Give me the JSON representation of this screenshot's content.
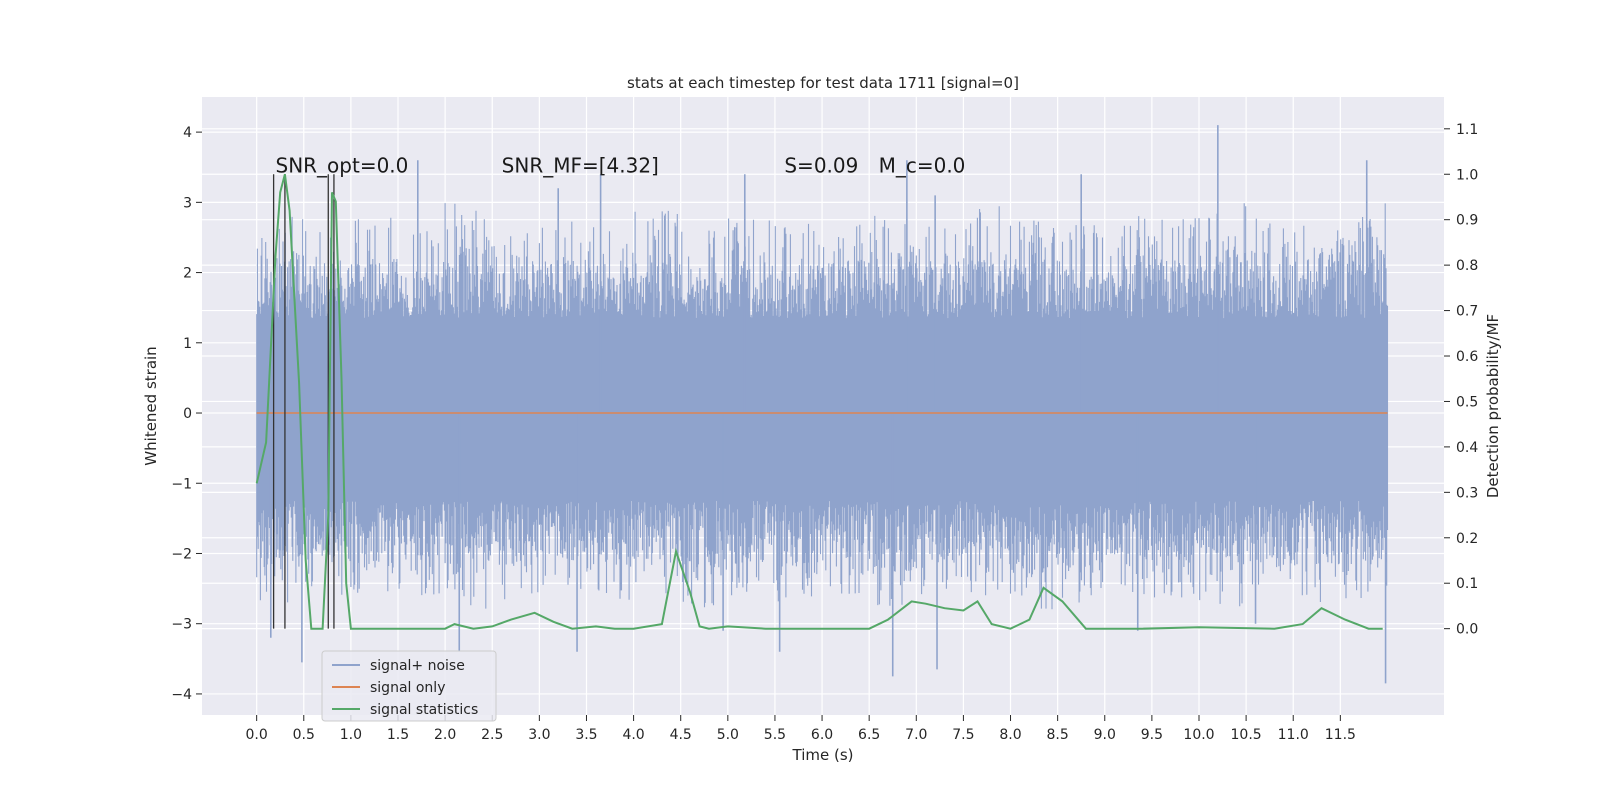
{
  "chart_data": {
    "type": "line",
    "title": "stats at each timestep for test data 1711 [signal=0]",
    "xlabel": "Time (s)",
    "ylabel": "Whitened strain",
    "ylabel_right": "Detection probability/MF",
    "xlim": [
      -0.58,
      12.6
    ],
    "ylim": [
      -4.3,
      4.5
    ],
    "ylim_right": [
      -0.19,
      1.17
    ],
    "x_ticks": [
      0.0,
      0.5,
      1.0,
      1.5,
      2.0,
      2.5,
      3.0,
      3.5,
      4.0,
      4.5,
      5.0,
      5.5,
      6.0,
      6.5,
      7.0,
      7.5,
      8.0,
      8.5,
      9.0,
      9.5,
      10.0,
      10.5,
      11.0,
      11.5
    ],
    "x_tick_labels": [
      "0.0",
      "0.5",
      "1.0",
      "1.5",
      "2.0",
      "2.5",
      "3.0",
      "3.5",
      "4.0",
      "4.5",
      "5.0",
      "5.5",
      "6.0",
      "6.5",
      "7.0",
      "7.5",
      "8.0",
      "8.5",
      "9.0",
      "9.5",
      "10.0",
      "10.5",
      "11.0",
      "11.5"
    ],
    "y_ticks": [
      -4,
      -3,
      -2,
      -1,
      0,
      1,
      2,
      3,
      4
    ],
    "y_tick_labels": [
      "−4",
      "−3",
      "−2",
      "−1",
      "0",
      "1",
      "2",
      "3",
      "4"
    ],
    "y_right_ticks": [
      0.0,
      0.1,
      0.2,
      0.3,
      0.4,
      0.5,
      0.6,
      0.7,
      0.8,
      0.9,
      1.0,
      1.1
    ],
    "y_right_tick_labels": [
      "0.0",
      "0.1",
      "0.2",
      "0.3",
      "0.4",
      "0.5",
      "0.6",
      "0.7",
      "0.8",
      "0.9",
      "1.0",
      "1.1"
    ],
    "grid": true,
    "legend_position": "lower-left",
    "annotations": [
      {
        "text": "SNR_opt=0.0",
        "x": 0.2,
        "y_right": 1.0
      },
      {
        "text": "SNR_MF=[4.32]",
        "x": 2.6,
        "y_right": 1.0
      },
      {
        "text": "S=0.09",
        "x": 5.6,
        "y_right": 1.0
      },
      {
        "text": "M_c=0.0",
        "x": 6.6,
        "y_right": 1.0
      }
    ],
    "vertical_markers": [
      {
        "x": 0.18,
        "y_right": [
          0.0,
          1.0
        ]
      },
      {
        "x": 0.3,
        "y_right": [
          0.0,
          1.0
        ]
      },
      {
        "x": 0.76,
        "y_right": [
          0.0,
          1.0
        ]
      },
      {
        "x": 0.82,
        "y_right": [
          0.0,
          1.0
        ]
      }
    ],
    "series": [
      {
        "name": "signal+ noise",
        "color": "#8fa3cc",
        "axis": "left",
        "x_range": [
          0.0,
          12.0
        ],
        "core_band": [
          -1.25,
          1.35
        ],
        "envelope_upper": [
          2.3,
          2.1,
          2.2,
          2.0,
          2.4,
          2.1,
          2.2,
          2.1,
          2.3,
          2.0,
          2.2,
          2.1,
          2.2,
          2.3,
          2.1,
          2.4,
          2.2,
          2.1,
          2.3,
          2.2,
          2.4,
          2.2,
          2.3,
          2.5
        ],
        "envelope_lower": [
          -2.2,
          -2.1,
          -2.2,
          -2.1,
          -2.3,
          -2.2,
          -2.1,
          -2.2,
          -2.1,
          -2.3,
          -2.2,
          -2.2,
          -2.1,
          -2.3,
          -2.2,
          -2.1,
          -2.3,
          -2.2,
          -2.1,
          -2.2,
          -2.3,
          -2.1,
          -2.2,
          -2.2
        ],
        "spikes": [
          {
            "x": 1.71,
            "y": 3.6
          },
          {
            "x": 3.2,
            "y": 3.2
          },
          {
            "x": 3.65,
            "y": 3.4
          },
          {
            "x": 5.18,
            "y": 3.4
          },
          {
            "x": 6.9,
            "y": 3.6
          },
          {
            "x": 7.2,
            "y": 3.1
          },
          {
            "x": 8.75,
            "y": 3.4
          },
          {
            "x": 10.2,
            "y": 4.1
          },
          {
            "x": 11.78,
            "y": 3.6
          },
          {
            "x": 0.48,
            "y": -3.55
          },
          {
            "x": 2.15,
            "y": -3.4
          },
          {
            "x": 3.4,
            "y": -3.4
          },
          {
            "x": 5.55,
            "y": -3.4
          },
          {
            "x": 6.75,
            "y": -3.75
          },
          {
            "x": 7.22,
            "y": -3.65
          },
          {
            "x": 11.98,
            "y": -3.85
          },
          {
            "x": 0.15,
            "y": -3.2
          },
          {
            "x": 4.95,
            "y": -3.1
          },
          {
            "x": 9.35,
            "y": -3.1
          },
          {
            "x": 10.6,
            "y": -3.0
          }
        ]
      },
      {
        "name": "signal only",
        "color": "#dd8452",
        "axis": "left",
        "x": [
          0.0,
          12.0
        ],
        "y": [
          0.0,
          0.0
        ]
      },
      {
        "name": "signal statistics",
        "color": "#55a868",
        "axis": "right",
        "x": [
          0.0,
          0.1,
          0.2,
          0.25,
          0.3,
          0.35,
          0.45,
          0.52,
          0.58,
          0.7,
          0.76,
          0.8,
          0.84,
          0.9,
          0.95,
          1.0,
          1.5,
          2.0,
          2.1,
          2.3,
          2.5,
          2.7,
          2.95,
          3.15,
          3.35,
          3.6,
          3.8,
          4.0,
          4.3,
          4.45,
          4.6,
          4.7,
          4.8,
          5.0,
          5.4,
          5.8,
          6.2,
          6.5,
          6.7,
          6.95,
          7.1,
          7.3,
          7.5,
          7.65,
          7.8,
          8.0,
          8.2,
          8.35,
          8.55,
          8.8,
          9.0,
          9.4,
          10.0,
          10.8,
          11.1,
          11.3,
          11.55,
          11.8,
          11.95
        ],
        "y": [
          0.32,
          0.41,
          0.82,
          0.96,
          1.0,
          0.92,
          0.54,
          0.15,
          0.0,
          0.0,
          0.25,
          0.96,
          0.94,
          0.55,
          0.1,
          0.0,
          0.0,
          0.0,
          0.01,
          0.0,
          0.005,
          0.02,
          0.035,
          0.015,
          0.0,
          0.005,
          0.0,
          0.0,
          0.01,
          0.17,
          0.08,
          0.005,
          0.0,
          0.005,
          0.0,
          0.0,
          0.0,
          0.0,
          0.02,
          0.06,
          0.055,
          0.045,
          0.04,
          0.06,
          0.01,
          0.0,
          0.02,
          0.09,
          0.06,
          0.0,
          0.0,
          0.0,
          0.003,
          0.0,
          0.01,
          0.045,
          0.02,
          0.0,
          0.0
        ]
      }
    ]
  }
}
